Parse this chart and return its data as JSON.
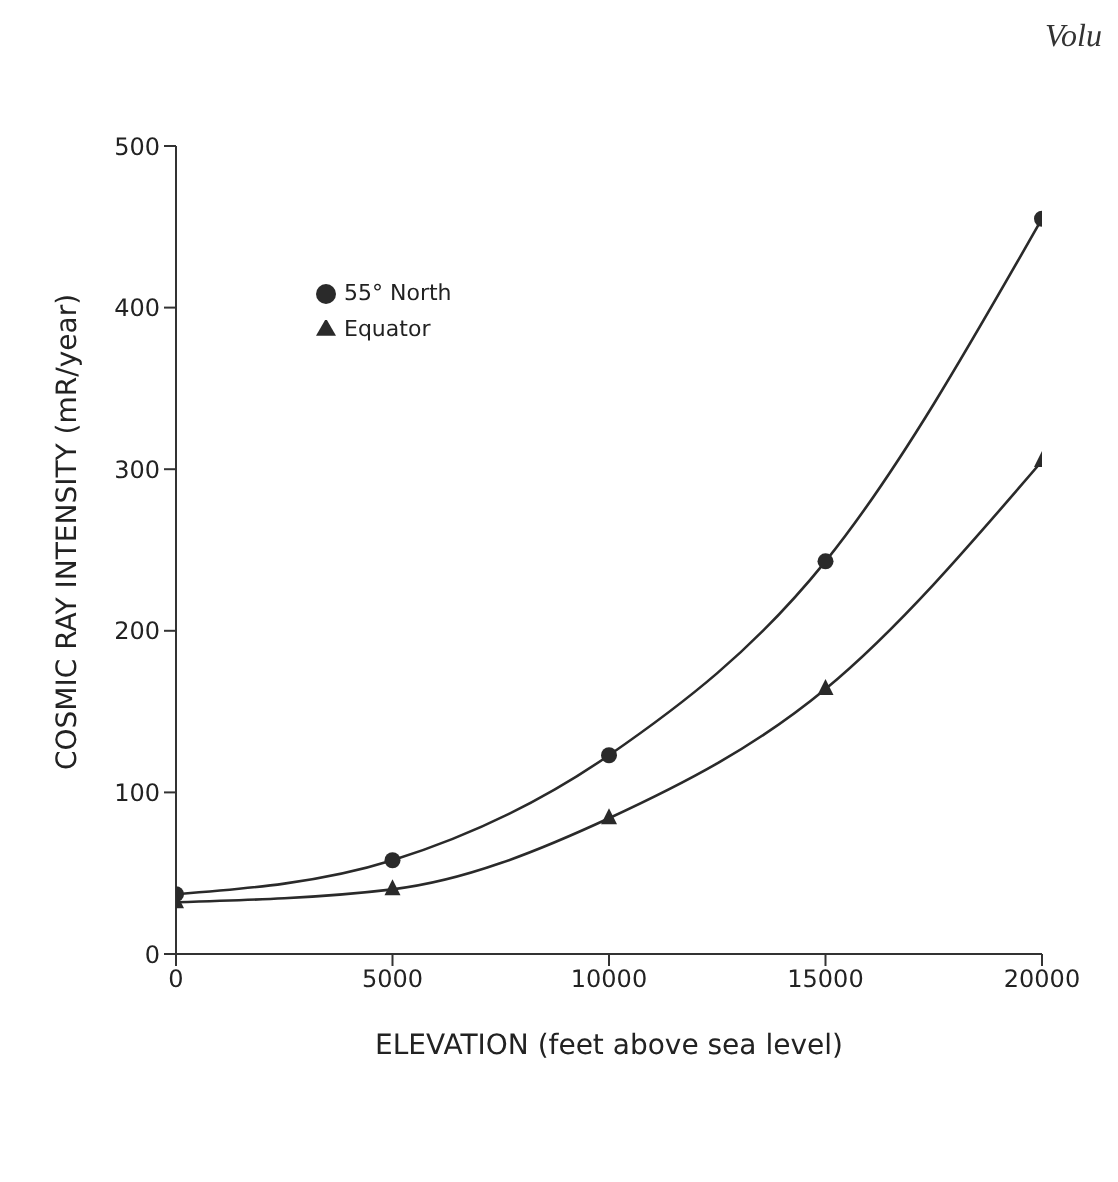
{
  "chart_data": {
    "type": "line",
    "xlabel": "ELEVATION (feet above sea level)",
    "ylabel": "COSMIC RAY INTENSITY (mR/year)",
    "annotations": [
      "Volu"
    ],
    "x": [
      0,
      5000,
      10000,
      15000,
      20000
    ],
    "series": [
      {
        "name": "55° North",
        "color": "#2a2a2a",
        "marker": "circle",
        "values": [
          37,
          58,
          123,
          243,
          455
        ]
      },
      {
        "name": "Equator",
        "color": "#2a2a2a",
        "marker": "triangle",
        "values": [
          32,
          40,
          84,
          164,
          305
        ]
      }
    ],
    "xlim": [
      0,
      20000
    ],
    "xticks": [
      0,
      5000,
      10000,
      15000,
      20000
    ],
    "ylim": [
      0,
      500
    ],
    "yticks": [
      0,
      100,
      200,
      300,
      400,
      500
    ],
    "grid": false,
    "legend": "top left",
    "line_style": "solid"
  }
}
